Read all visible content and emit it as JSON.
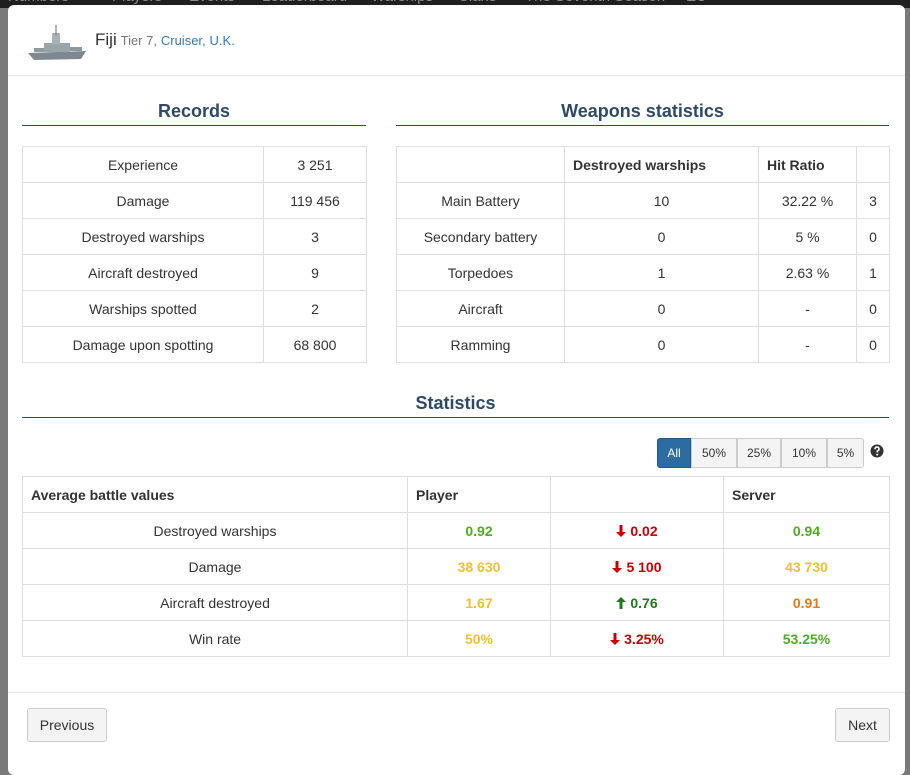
{
  "nav": [
    "Numbers",
    "Players",
    "Events",
    "Leaderboard",
    "Warships",
    "Clans",
    "The Seventh Season",
    "EU"
  ],
  "header": {
    "name": "Fiji",
    "tier": "Tier 7,",
    "class": "Cruiser,",
    "nation": "U.K."
  },
  "records": {
    "title": "Records",
    "rows": [
      [
        "Experience",
        "3 251"
      ],
      [
        "Damage",
        "119 456"
      ],
      [
        "Destroyed warships",
        "3"
      ],
      [
        "Aircraft destroyed",
        "9"
      ],
      [
        "Warships spotted",
        "2"
      ],
      [
        "Damage upon spotting",
        "68 800"
      ]
    ]
  },
  "weapons": {
    "title": "Weapons statistics",
    "columns": [
      null,
      "Destroyed warships",
      "Hit Ratio",
      null
    ],
    "rows": [
      [
        "Main Battery",
        "10",
        "32.22 %",
        "3"
      ],
      [
        "Secondary battery",
        "0",
        "5 %",
        "0"
      ],
      [
        "Torpedoes",
        "1",
        "2.63 %",
        "1"
      ],
      [
        "Aircraft",
        "0",
        "-",
        "0"
      ],
      [
        "Ramming",
        "0",
        "-",
        "0"
      ]
    ]
  },
  "statistics": {
    "title": "Statistics",
    "filters": [
      "All",
      "50%",
      "25%",
      "10%",
      "5%"
    ],
    "active_filter": 0,
    "columns": [
      "Average battle values",
      "Player",
      null,
      "Server"
    ],
    "rows": [
      {
        "label": "Destroyed warships",
        "player": {
          "text": "0.92",
          "color": "#4cae1f"
        },
        "diff": {
          "text": "0.02",
          "direction": "down",
          "color": "#cc0000"
        },
        "server": {
          "text": "0.94",
          "color": "#4cae1f"
        }
      },
      {
        "label": "Damage",
        "player": {
          "text": "38 630",
          "color": "#f0c030"
        },
        "diff": {
          "text": "5 100",
          "direction": "down",
          "color": "#cc0000"
        },
        "server": {
          "text": "43 730",
          "color": "#f0c030"
        }
      },
      {
        "label": "Aircraft destroyed",
        "player": {
          "text": "1.67",
          "color": "#f0c030"
        },
        "diff": {
          "text": "0.76",
          "direction": "up",
          "color": "#1e7a1e"
        },
        "server": {
          "text": "0.91",
          "color": "#e07818"
        }
      },
      {
        "label": "Win rate",
        "player": {
          "text": "50%",
          "color": "#f0c030"
        },
        "diff": {
          "text": "3.25%",
          "direction": "down",
          "color": "#cc0000"
        },
        "server": {
          "text": "53.25%",
          "color": "#4cae1f"
        }
      }
    ]
  },
  "footer": {
    "previous": "Previous",
    "next": "Next"
  }
}
